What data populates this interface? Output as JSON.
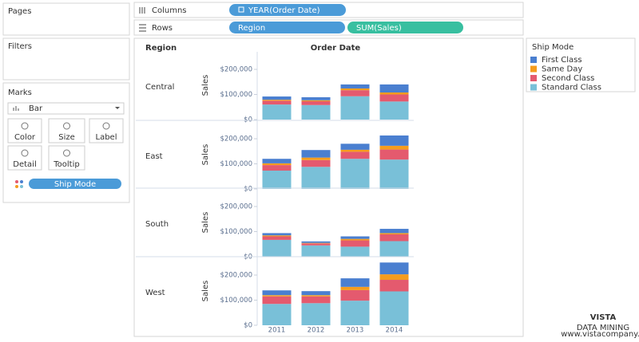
{
  "sidebar": {
    "pages": "Pages",
    "filters": "Filters",
    "marks": "Marks",
    "mark_type": "Bar",
    "mark_buttons": [
      "Color",
      "Size",
      "Label",
      "Detail",
      "Tooltip"
    ],
    "color_pill": "Ship Mode"
  },
  "shelves": {
    "columns_label": "Columns",
    "columns_pill": "YEAR(Order Date)",
    "rows_label": "Rows",
    "rows_pills": [
      "Region",
      "SUM(Sales)"
    ]
  },
  "legend": {
    "title": "Ship Mode"
  },
  "chart_data": {
    "type": "bar",
    "stacked": true,
    "row_header": "Region",
    "column_header": "Order Date",
    "y_label": "Sales",
    "rows": [
      "Central",
      "East",
      "South",
      "West"
    ],
    "categories": [
      "2011",
      "2012",
      "2013",
      "2014"
    ],
    "series": [
      {
        "name": "First Class",
        "color": "#4a7fd0",
        "values": [
          [
            13000,
            12000,
            16000,
            32000
          ],
          [
            18000,
            30000,
            24000,
            41000
          ],
          [
            9000,
            6000,
            10000,
            17000
          ],
          [
            19000,
            16000,
            34000,
            47000
          ]
        ]
      },
      {
        "name": "Same Day",
        "color": "#f59c1e",
        "values": [
          [
            4000,
            4000,
            7000,
            8000
          ],
          [
            7000,
            10000,
            8000,
            15000
          ],
          [
            4000,
            2000,
            6000,
            5000
          ],
          [
            5000,
            5000,
            13000,
            22000
          ]
        ]
      },
      {
        "name": "Second Class",
        "color": "#e45a6e",
        "values": [
          [
            15000,
            15000,
            24000,
            28000
          ],
          [
            22000,
            27000,
            28000,
            40000
          ],
          [
            14000,
            8000,
            25000,
            27000
          ],
          [
            30000,
            27000,
            42000,
            46000
          ]
        ]
      },
      {
        "name": "Standard Class",
        "color": "#79c0d8",
        "values": [
          [
            60000,
            58000,
            93000,
            72000
          ],
          [
            73000,
            88000,
            120000,
            117000
          ],
          [
            67000,
            45000,
            40000,
            62000
          ],
          [
            85000,
            88000,
            98000,
            135000
          ]
        ]
      }
    ],
    "ylim": [
      0,
      270000
    ],
    "yticks": [
      {
        "value": 0,
        "label": "$0"
      },
      {
        "value": 100000,
        "label": "$100,000"
      },
      {
        "value": 200000,
        "label": "$200,000"
      }
    ]
  },
  "watermark": {
    "brand": "VISTA",
    "tagline": "DATA MINING",
    "url": "www.vistacompany.ir"
  }
}
